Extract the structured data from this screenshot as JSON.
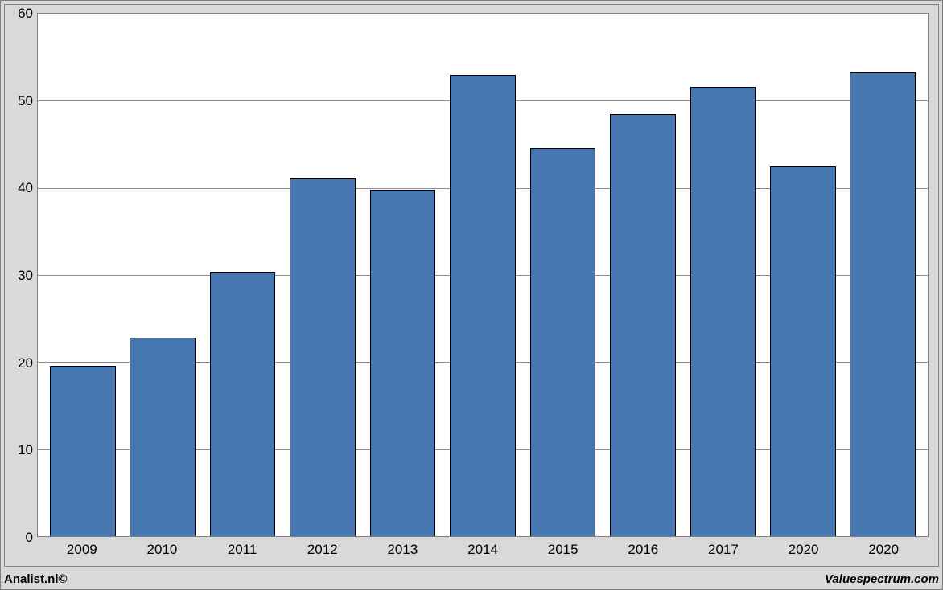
{
  "chart": {
    "type": "bar",
    "categories": [
      "2009",
      "2010",
      "2011",
      "2012",
      "2013",
      "2014",
      "2015",
      "2016",
      "2017",
      "2020",
      "2020"
    ],
    "values": [
      19.6,
      22.8,
      30.3,
      41.1,
      39.8,
      53.0,
      44.6,
      48.5,
      51.6,
      42.5,
      53.3
    ],
    "bar_color": "#4677b0",
    "bar_border_color": "#000000",
    "plot_background": "#ffffff",
    "panel_background": "#d9d9d9",
    "grid_color": "#808080",
    "border_color": "#808080",
    "ylim": [
      0,
      60
    ],
    "ytick_step": 10,
    "y_ticks": [
      0,
      10,
      20,
      30,
      40,
      50,
      60
    ],
    "label_fontsize": 17,
    "bar_width_ratio": 0.82
  },
  "footer": {
    "left": "Analist.nl©",
    "right": "Valuespectrum.com"
  }
}
